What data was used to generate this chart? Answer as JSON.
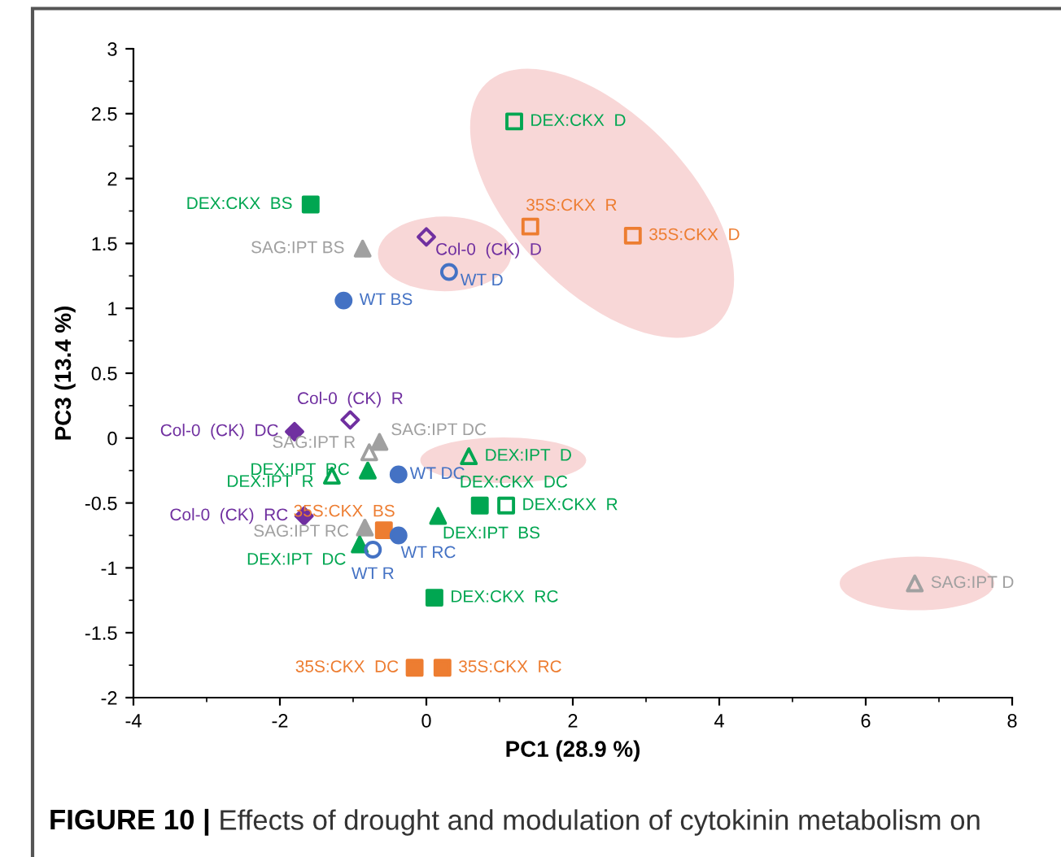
{
  "chart_data": {
    "type": "scatter",
    "xlabel": "PC1 (28.9 %)",
    "ylabel": "PC3 (13.4 %)",
    "xlim": [
      -4,
      8
    ],
    "ylim": [
      -2,
      3
    ],
    "xticks": [
      -4,
      -2,
      0,
      2,
      4,
      6,
      8
    ],
    "yticks": [
      -2,
      -1.5,
      -1,
      -0.5,
      0,
      0.5,
      1,
      1.5,
      2,
      2.5,
      3
    ],
    "grid": false,
    "legend": false,
    "annotations": [
      "FIGURE 10 |",
      "Effects of drought and modulation of cytokinin metabolism on"
    ],
    "series": [
      {
        "name": "DEX:CKX  D",
        "color": "#00a651",
        "x": [
          1.2
        ],
        "values": [
          2.44
        ],
        "marker": "square"
      },
      {
        "name": "DEX:CKX  BS",
        "color": "#00a651",
        "x": [
          -1.58
        ],
        "values": [
          1.8
        ],
        "marker": "square"
      },
      {
        "name": "SAG:IPT BS",
        "color": "#a0a0a0",
        "x": [
          -0.87
        ],
        "values": [
          1.46
        ],
        "marker": "triangle"
      },
      {
        "name": "Col-0  (CK)  D",
        "color": "#7030a0",
        "x": [
          0.0
        ],
        "values": [
          1.55
        ],
        "marker": "diamond"
      },
      {
        "name": "WT D",
        "color": "#4472c4",
        "x": [
          0.31
        ],
        "values": [
          1.28
        ],
        "marker": "circle"
      },
      {
        "name": "WT BS",
        "color": "#4472c4",
        "x": [
          -1.13
        ],
        "values": [
          1.06
        ],
        "marker": "circle"
      },
      {
        "name": "35S:CKX  R",
        "color": "#ed7d31",
        "x": [
          1.42
        ],
        "values": [
          1.63
        ],
        "marker": "square"
      },
      {
        "name": "35S:CKX  D",
        "color": "#ed7d31",
        "x": [
          2.82
        ],
        "values": [
          1.56
        ],
        "marker": "square"
      },
      {
        "name": "Col-0  (CK)  R",
        "color": "#7030a0",
        "x": [
          -1.04
        ],
        "values": [
          0.14
        ],
        "marker": "diamond"
      },
      {
        "name": "Col-0  (CK)  DC",
        "color": "#7030a0",
        "x": [
          -1.8
        ],
        "values": [
          0.05
        ],
        "marker": "diamond"
      },
      {
        "name": "SAG:IPT DC",
        "color": "#a0a0a0",
        "x": [
          -0.64
        ],
        "values": [
          -0.03
        ],
        "marker": "triangle"
      },
      {
        "name": "SAG:IPT R",
        "color": "#a0a0a0",
        "x": [
          -0.78
        ],
        "values": [
          -0.11
        ],
        "marker": "triangle"
      },
      {
        "name": "DEX:IPT  RC",
        "color": "#00a651",
        "x": [
          -0.8
        ],
        "values": [
          -0.25
        ],
        "marker": "triangle"
      },
      {
        "name": "DEX:IPT  R",
        "color": "#00a651",
        "x": [
          -1.29
        ],
        "values": [
          -0.29
        ],
        "marker": "triangle"
      },
      {
        "name": "WT DC",
        "color": "#4472c4",
        "x": [
          -0.38
        ],
        "values": [
          -0.28
        ],
        "marker": "circle"
      },
      {
        "name": "DEX:IPT  D",
        "color": "#00a651",
        "x": [
          0.58
        ],
        "values": [
          -0.14
        ],
        "marker": "triangle"
      },
      {
        "name": "DEX:CKX  DC",
        "color": "#00a651",
        "x": [
          0.73
        ],
        "values": [
          -0.52
        ],
        "marker": "square"
      },
      {
        "name": "DEX:CKX  R",
        "color": "#00a651",
        "x": [
          1.09
        ],
        "values": [
          -0.52
        ],
        "marker": "square"
      },
      {
        "name": "DEX:IPT  BS",
        "color": "#00a651",
        "x": [
          0.16
        ],
        "values": [
          -0.6
        ],
        "marker": "triangle"
      },
      {
        "name": "Col-0  (CK)  RC",
        "color": "#7030a0",
        "x": [
          -1.67
        ],
        "values": [
          -0.6
        ],
        "marker": "diamond"
      },
      {
        "name": "SAG:IPT RC",
        "color": "#a0a0a0",
        "x": [
          -0.84
        ],
        "values": [
          -0.69
        ],
        "marker": "triangle"
      },
      {
        "name": "35S:CKX  BS",
        "color": "#ed7d31",
        "x": [
          -0.58
        ],
        "values": [
          -0.71
        ],
        "marker": "square"
      },
      {
        "name": "WT RC",
        "color": "#4472c4",
        "x": [
          -0.38
        ],
        "values": [
          -0.75
        ],
        "marker": "circle"
      },
      {
        "name": "DEX:IPT  DC",
        "color": "#00a651",
        "x": [
          -0.91
        ],
        "values": [
          -0.82
        ],
        "marker": "triangle"
      },
      {
        "name": "WT R",
        "color": "#4472c4",
        "x": [
          -0.73
        ],
        "values": [
          -0.86
        ],
        "marker": "circle"
      },
      {
        "name": "DEX:CKX  RC",
        "color": "#00a651",
        "x": [
          0.11
        ],
        "values": [
          -1.23
        ],
        "marker": "square"
      },
      {
        "name": "35S:CKX  DC",
        "color": "#ed7d31",
        "x": [
          -0.16
        ],
        "values": [
          -1.77
        ],
        "marker": "square"
      },
      {
        "name": "35S:CKX  RC",
        "color": "#ed7d31",
        "x": [
          0.22
        ],
        "values": [
          -1.77
        ],
        "marker": "square"
      },
      {
        "name": "SAG:IPT D",
        "color": "#a0a0a0",
        "x": [
          6.67
        ],
        "values": [
          -1.12
        ],
        "marker": "triangle"
      }
    ]
  }
}
